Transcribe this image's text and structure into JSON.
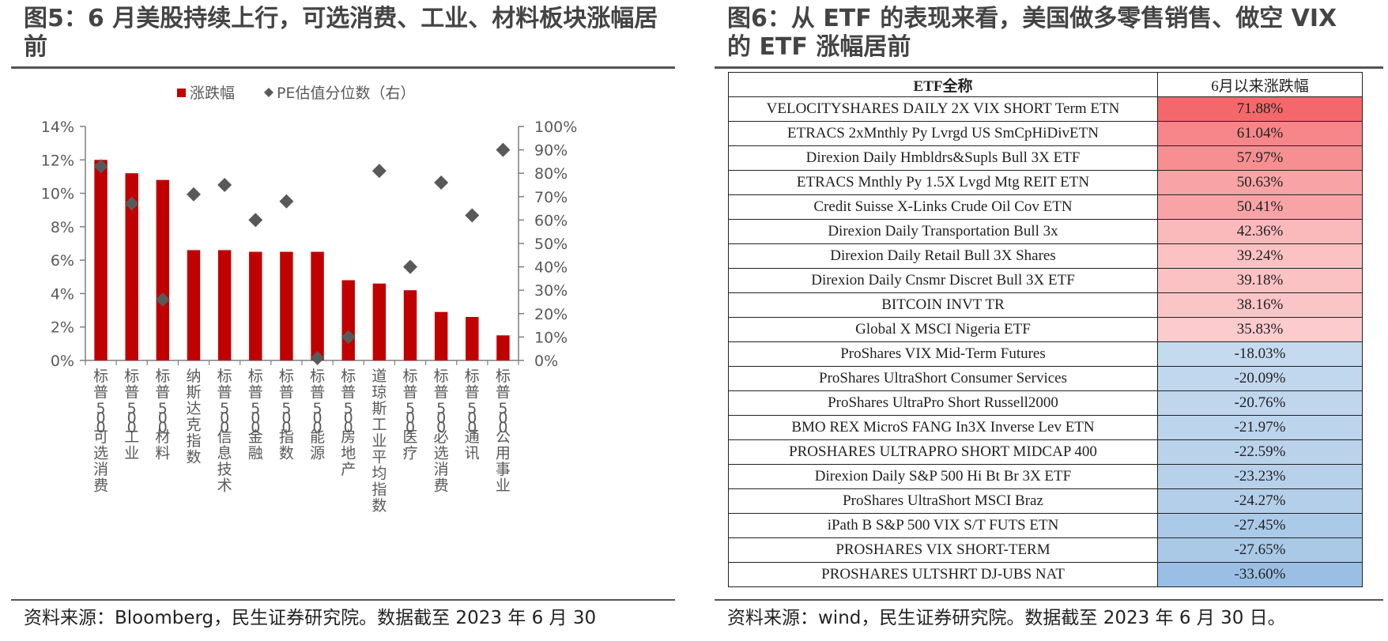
{
  "left": {
    "title": "图5：6 月美股持续上行，可选消费、工业、材料板块涨幅居前",
    "source": "资料来源：Bloomberg，民生证券研究院。数据截至 2023 年 6 月 30"
  },
  "right": {
    "title": "图6：从 ETF 的表现来看，美国做多零售销售、做空 VIX 的 ETF 涨幅居前",
    "source": "资料来源：wind，民生证券研究院。数据截至 2023 年 6 月 30 日。"
  },
  "chart_data": [
    {
      "type": "bar",
      "categories": [
        "标普500可选消费",
        "标普500工业",
        "标普500材料",
        "纳斯达克指数",
        "标普500信息技术",
        "标普500金融",
        "标普500指数",
        "标普500能源",
        "标普500房地产",
        "道琼斯工业平均指数",
        "标普500医疗",
        "标普500必选消费",
        "标普500通讯",
        "标普500公用事业"
      ],
      "series": [
        {
          "name": "涨跌幅",
          "type": "bar",
          "axis": "left",
          "color": "#C00000",
          "values": [
            12.0,
            11.2,
            10.8,
            6.6,
            6.6,
            6.5,
            6.5,
            6.5,
            4.8,
            4.6,
            4.2,
            2.9,
            2.6,
            1.5
          ]
        },
        {
          "name": "PE估值分位数（右）",
          "type": "scatter",
          "axis": "right",
          "color": "#595959",
          "marker": "diamond",
          "values": [
            83,
            67,
            26,
            71,
            75,
            60,
            68,
            1,
            10,
            81,
            40,
            76,
            62,
            90
          ]
        }
      ],
      "y_left": {
        "min": 0,
        "max": 14,
        "step": 2,
        "tick_labels": [
          "0%",
          "2%",
          "4%",
          "6%",
          "8%",
          "10%",
          "12%",
          "14%"
        ]
      },
      "y_right": {
        "min": 0,
        "max": 100,
        "step": 10,
        "tick_labels": [
          "0%",
          "10%",
          "20%",
          "30%",
          "40%",
          "50%",
          "60%",
          "70%",
          "80%",
          "90%",
          "100%"
        ]
      },
      "legend_position": "top-center",
      "grid": false
    },
    {
      "type": "table",
      "columns": [
        "ETF全称",
        "6月以来涨跌幅"
      ],
      "rows": [
        {
          "name": "VELOCITYSHARES DAILY 2X VIX SHORT Term ETN",
          "value": "71.88%",
          "bg": "#F4686B"
        },
        {
          "name": "ETRACS 2xMnthly Py Lvrgd US SmCpHiDivETN",
          "value": "61.04%",
          "bg": "#F6868A"
        },
        {
          "name": "Direxion Daily Hmbldrs&Supls Bull 3X ETF",
          "value": "57.97%",
          "bg": "#F78F92"
        },
        {
          "name": "ETRACS Mnthly Py 1.5X Lvgd Mtg REIT ETN",
          "value": "50.63%",
          "bg": "#F8A3A6"
        },
        {
          "name": "Credit Suisse X-Links Crude Oil Cov ETN",
          "value": "50.41%",
          "bg": "#F8A4A7"
        },
        {
          "name": "Direxion Daily Transportation Bull 3x",
          "value": "42.36%",
          "bg": "#FAB9BB"
        },
        {
          "name": "Direxion Daily Retail Bull 3X Shares",
          "value": "39.24%",
          "bg": "#FBC1C3"
        },
        {
          "name": "Direxion Daily Cnsmr Discret Bull 3X ETF",
          "value": "39.18%",
          "bg": "#FBC2C4"
        },
        {
          "name": "BITCOIN INVT TR",
          "value": "38.16%",
          "bg": "#FBC5C7"
        },
        {
          "name": "Global X MSCI Nigeria ETF",
          "value": "35.83%",
          "bg": "#FCCBCD"
        },
        {
          "name": "ProShares VIX Mid-Term Futures",
          "value": "-18.03%",
          "bg": "#C5DAEF"
        },
        {
          "name": "ProShares UltraShort Consumer Services",
          "value": "-20.09%",
          "bg": "#C1D7EE"
        },
        {
          "name": "ProShares UltraPro Short Russell2000",
          "value": "-20.76%",
          "bg": "#BFD6ED"
        },
        {
          "name": "BMO REX MicroS FANG In3X Inverse Lev ETN",
          "value": "-21.97%",
          "bg": "#BCD4EC"
        },
        {
          "name": "PROSHARES ULTRAPRO SHORT MIDCAP 400",
          "value": "-22.59%",
          "bg": "#BAD3EB"
        },
        {
          "name": "Direxion Daily S&P 500 Hi Bt Br 3X ETF",
          "value": "-23.23%",
          "bg": "#B8D1EA"
        },
        {
          "name": "ProShares UltraShort MSCI Braz",
          "value": "-24.27%",
          "bg": "#B4CFE9"
        },
        {
          "name": "iPath B S&P 500 VIX S/T FUTS ETN",
          "value": "-27.45%",
          "bg": "#AACAE8"
        },
        {
          "name": "PROSHARES VIX SHORT-TERM",
          "value": "-27.65%",
          "bg": "#A9C9E7"
        },
        {
          "name": "PROSHARES ULTSHRT DJ-UBS NAT",
          "value": "-33.60%",
          "bg": "#9BBFE4"
        }
      ]
    }
  ]
}
